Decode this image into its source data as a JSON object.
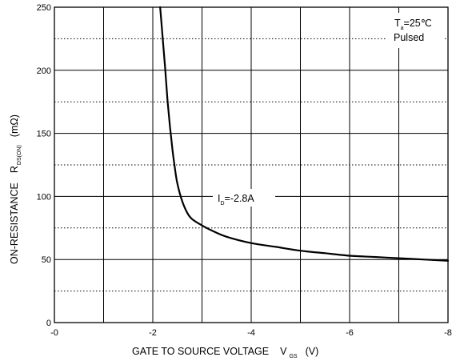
{
  "chart_data": {
    "type": "line",
    "xlabel": {
      "main": "GATE TO SOURCE VOLTAGE",
      "symbol": "V",
      "sub": "GS",
      "unit": "(V)"
    },
    "ylabel": {
      "main": "ON-RESISTANCE",
      "symbol": "R",
      "sub": "DS(ON)",
      "unit": "(mΩ)"
    },
    "x_ticks": [
      "-0",
      "-2",
      "-4",
      "-6",
      "-8"
    ],
    "x_tick_values": [
      0,
      -2,
      -4,
      -6,
      -8
    ],
    "y_ticks": [
      "0",
      "50",
      "100",
      "150",
      "200",
      "250"
    ],
    "y_tick_values": [
      0,
      50,
      100,
      150,
      200,
      250
    ],
    "xlim": [
      0,
      -8
    ],
    "ylim": [
      0,
      250
    ],
    "grid": {
      "major": true,
      "minor_dotted": true
    },
    "conditions": {
      "temp_prefix": "T",
      "temp_sub": "a",
      "temp_value": "=25℃",
      "mode": "Pulsed"
    },
    "series": [
      {
        "label": {
          "prefix": "I",
          "sub": "D",
          "value": "=-2.8A"
        },
        "x": [
          -2.15,
          -2.2,
          -2.25,
          -2.3,
          -2.35,
          -2.4,
          -2.45,
          -2.5,
          -2.6,
          -2.7,
          -2.8,
          -3.0,
          -3.25,
          -3.5,
          -4.0,
          -4.5,
          -5.0,
          -5.5,
          -6.0,
          -6.5,
          -7.0,
          -7.5,
          -8.0
        ],
        "y": [
          250,
          226,
          202,
          176,
          155,
          137,
          122,
          110,
          96,
          87,
          82,
          77,
          72,
          68,
          63,
          60,
          57,
          55,
          53,
          52,
          51,
          50,
          49
        ]
      }
    ]
  }
}
